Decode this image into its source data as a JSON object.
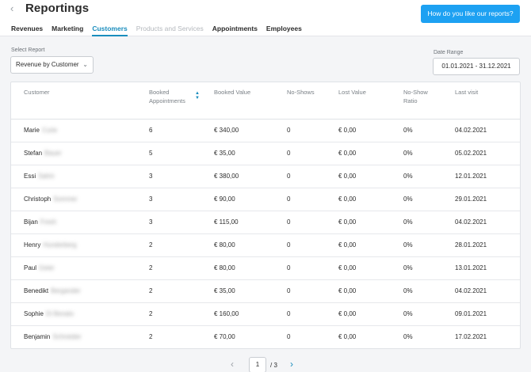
{
  "header": {
    "title": "Reportings",
    "feedback_button": "How do you like our reports?",
    "tabs": [
      {
        "label": "Revenues"
      },
      {
        "label": "Marketing"
      },
      {
        "label": "Customers"
      },
      {
        "label": "Products and Services"
      },
      {
        "label": "Appointments"
      },
      {
        "label": "Employees"
      }
    ],
    "active_tab": "Customers"
  },
  "filters": {
    "select_report_label": "Select Report",
    "select_report_value": "Revenue by Customer",
    "date_range_label": "Date Range",
    "date_range_value": "01.01.2021 - 31.12.2021"
  },
  "table": {
    "columns": [
      {
        "label": "Customer"
      },
      {
        "label": "Booked Appointments"
      },
      {
        "label": "Booked Value"
      },
      {
        "label": "No-Shows"
      },
      {
        "label": "Lost Value"
      },
      {
        "label": "No-Show Ratio"
      },
      {
        "label": "Last visit"
      }
    ],
    "rows": [
      {
        "first": "Marie",
        "last": "Curie",
        "booked": "6",
        "value": "€ 340,00",
        "noshows": "0",
        "lost": "€ 0,00",
        "ratio": "0%",
        "last_visit": "04.02.2021"
      },
      {
        "first": "Stefan",
        "last": "Bauer",
        "booked": "5",
        "value": "€ 35,00",
        "noshows": "0",
        "lost": "€ 0,00",
        "ratio": "0%",
        "last_visit": "05.02.2021"
      },
      {
        "first": "Essi",
        "last": "Salmi",
        "booked": "3",
        "value": "€ 380,00",
        "noshows": "0",
        "lost": "€ 0,00",
        "ratio": "0%",
        "last_visit": "12.01.2021"
      },
      {
        "first": "Christoph",
        "last": "Sommer",
        "booked": "3",
        "value": "€ 90,00",
        "noshows": "0",
        "lost": "€ 0,00",
        "ratio": "0%",
        "last_visit": "29.01.2021"
      },
      {
        "first": "Bijan",
        "last": "Fresh",
        "booked": "3",
        "value": "€ 115,00",
        "noshows": "0",
        "lost": "€ 0,00",
        "ratio": "0%",
        "last_visit": "04.02.2021"
      },
      {
        "first": "Henry",
        "last": "Hunderberg",
        "booked": "2",
        "value": "€ 80,00",
        "noshows": "0",
        "lost": "€ 0,00",
        "ratio": "0%",
        "last_visit": "28.01.2021"
      },
      {
        "first": "Paul",
        "last": "Geier",
        "booked": "2",
        "value": "€ 80,00",
        "noshows": "0",
        "lost": "€ 0,00",
        "ratio": "0%",
        "last_visit": "13.01.2021"
      },
      {
        "first": "Benedikt",
        "last": "Bergander",
        "booked": "2",
        "value": "€ 35,00",
        "noshows": "0",
        "lost": "€ 0,00",
        "ratio": "0%",
        "last_visit": "04.02.2021"
      },
      {
        "first": "Sophie",
        "last": "Di Benato",
        "booked": "2",
        "value": "€ 160,00",
        "noshows": "0",
        "lost": "€ 0,00",
        "ratio": "0%",
        "last_visit": "09.01.2021"
      },
      {
        "first": "Benjamin",
        "last": "Schneider",
        "booked": "2",
        "value": "€ 70,00",
        "noshows": "0",
        "lost": "€ 0,00",
        "ratio": "0%",
        "last_visit": "17.02.2021"
      }
    ]
  },
  "pagination": {
    "current_page": "1",
    "total_text": "/ 3"
  },
  "icons": {
    "back": "chevron-left-icon",
    "sort": "sort-icon",
    "prev": "chevron-left-icon",
    "next": "chevron-right-icon"
  },
  "colors": {
    "accent": "#1a8dbd",
    "button": "#1da1f2",
    "disabled": "#b4b8bd"
  }
}
